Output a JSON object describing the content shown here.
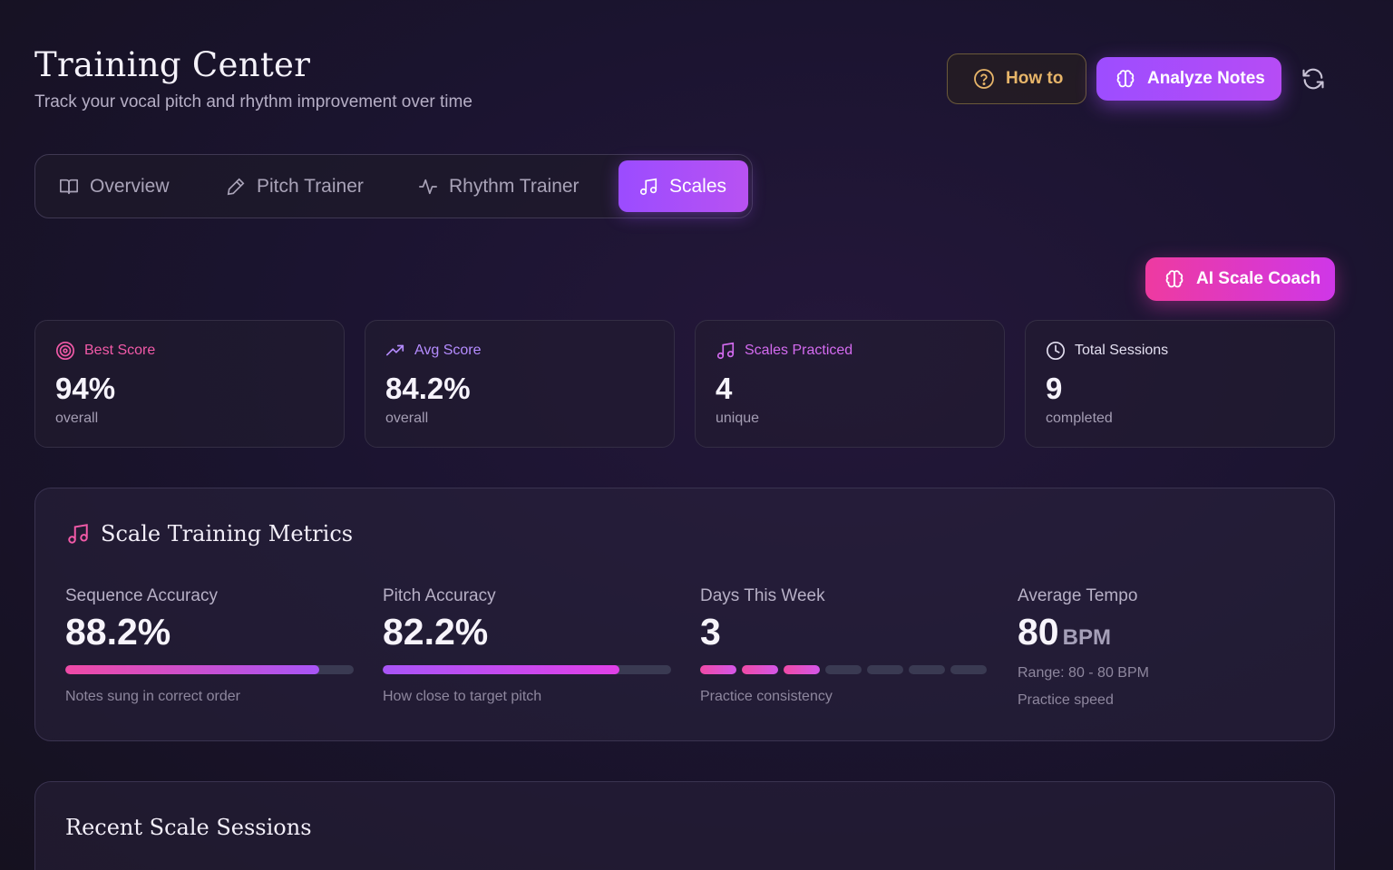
{
  "header": {
    "title": "Training Center",
    "subtitle": "Track your vocal pitch and rhythm improvement over time",
    "howto_label": "How to",
    "analyze_label": "Analyze Notes"
  },
  "tabs": [
    {
      "label": "Overview",
      "icon": "book-icon",
      "active": false
    },
    {
      "label": "Pitch Trainer",
      "icon": "pen-icon",
      "active": false
    },
    {
      "label": "Rhythm Trainer",
      "icon": "pulse-icon",
      "active": false
    },
    {
      "label": "Scales",
      "icon": "music-note-icon",
      "active": true
    }
  ],
  "coach_label": "AI Scale Coach",
  "stats": [
    {
      "label": "Best Score",
      "value": "94%",
      "sub": "overall",
      "icon": "target-icon",
      "color": "#f25aa8"
    },
    {
      "label": "Avg Score",
      "value": "84.2%",
      "sub": "overall",
      "icon": "trending-up-icon",
      "color": "#b58cff"
    },
    {
      "label": "Scales Practiced",
      "value": "4",
      "sub": "unique",
      "icon": "music-note-icon",
      "color": "#d46bf0"
    },
    {
      "label": "Total Sessions",
      "value": "9",
      "sub": "completed",
      "icon": "clock-icon",
      "color": "#e3dff0"
    }
  ],
  "metrics": {
    "title": "Scale Training Metrics",
    "sequence": {
      "label": "Sequence Accuracy",
      "value": "88.2%",
      "progress": 0.882,
      "desc": "Notes sung in correct order"
    },
    "pitch": {
      "label": "Pitch Accuracy",
      "value": "82.2%",
      "progress": 0.822,
      "desc": "How close to target pitch"
    },
    "days": {
      "label": "Days This Week",
      "value": "3",
      "active_days": 3,
      "total_days": 7,
      "desc": "Practice consistency"
    },
    "tempo": {
      "label": "Average Tempo",
      "value": "80",
      "unit": "BPM",
      "range": "Range: 80 - 80 BPM",
      "desc": "Practice speed"
    }
  },
  "recent": {
    "title": "Recent Scale Sessions"
  },
  "colors": {
    "accent_purple": "#a24dff",
    "accent_pink": "#ee3aa0",
    "gold": "#e7b569"
  }
}
